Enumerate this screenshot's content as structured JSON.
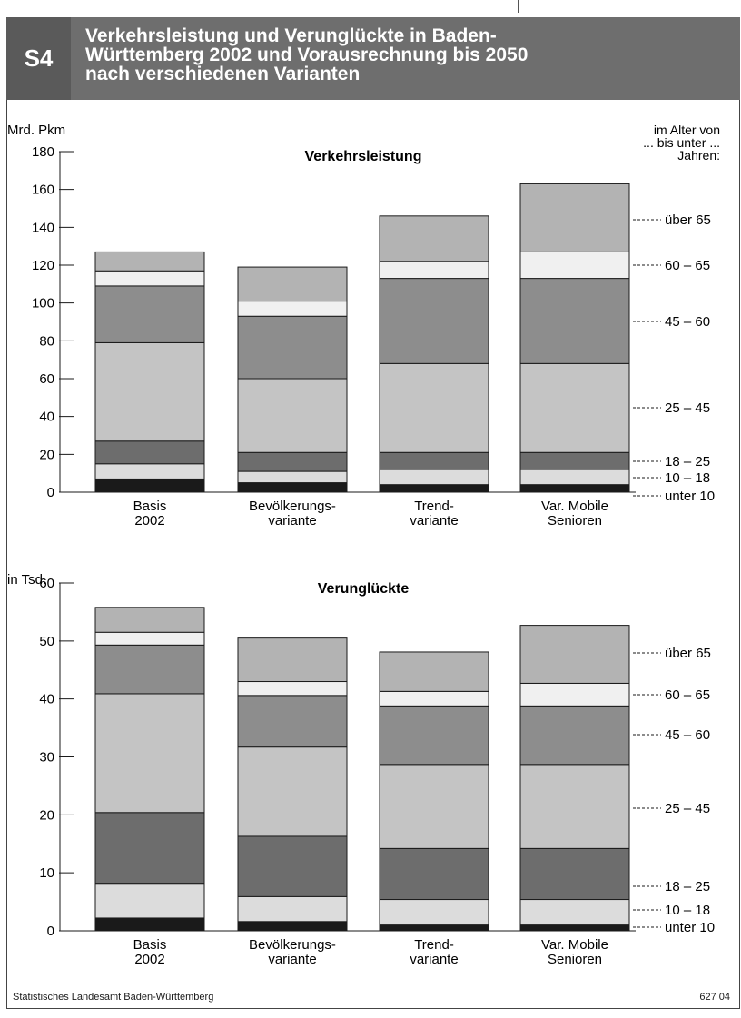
{
  "header": {
    "label": "S4",
    "title": "Verkehrsleistung und Verunglückte in Baden-\nWürttemberg 2002 und Vorausrechnung bis 2050\nnach verschiedenen Varianten"
  },
  "footer": {
    "source": "Statistisches Landesamt Baden-Württemberg",
    "code": "627 04"
  },
  "colors": {
    "unter 10": "#1a1a1a",
    "10 – 18": "#dcdcdc",
    "18 – 25": "#6d6d6d",
    "25 – 45": "#c4c4c4",
    "45 – 60": "#8d8d8d",
    "60 – 65": "#f0f0f0",
    "über 65": "#b3b3b3"
  },
  "chart_data": [
    {
      "type": "bar",
      "stacked": true,
      "title": "Verkehrsleistung",
      "ylabel": "Mrd. Pkm",
      "legend_title": "im Alter von\n... bis unter ...\nJahren:",
      "ylim": [
        0,
        180
      ],
      "yticks": [
        0,
        20,
        40,
        60,
        80,
        100,
        120,
        140,
        160,
        180
      ],
      "categories": [
        "Basis\n2002",
        "Bevölkerungs-\nvariante",
        "Trend-\nvariante",
        "Var. Mobile\nSenioren"
      ],
      "series": [
        {
          "name": "unter 10",
          "values": [
            7,
            5,
            4,
            4
          ]
        },
        {
          "name": "10 – 18",
          "values": [
            8,
            6,
            8,
            8
          ]
        },
        {
          "name": "18 – 25",
          "values": [
            12,
            10,
            9,
            9
          ]
        },
        {
          "name": "25 – 45",
          "values": [
            52,
            39,
            47,
            47
          ]
        },
        {
          "name": "45 – 60",
          "values": [
            30,
            33,
            45,
            45
          ]
        },
        {
          "name": "60 – 65",
          "values": [
            8,
            8,
            9,
            14
          ]
        },
        {
          "name": "über 65",
          "values": [
            10,
            18,
            24,
            36
          ]
        }
      ],
      "legend_labels_order": [
        "über 65",
        "60 – 65",
        "45 – 60",
        "25 – 45",
        "18 – 25",
        "10 – 18",
        "unter 10"
      ]
    },
    {
      "type": "bar",
      "stacked": true,
      "title": "Verunglückte",
      "ylabel": "in Tsd.",
      "ylim": [
        0,
        60
      ],
      "yticks": [
        0,
        10,
        20,
        30,
        40,
        50,
        60
      ],
      "categories": [
        "Basis\n2002",
        "Bevölkerungs-\nvariante",
        "Trend-\nvariante",
        "Var. Mobile\nSenioren"
      ],
      "series": [
        {
          "name": "unter 10",
          "values": [
            2.2,
            1.6,
            1.0,
            1.0
          ]
        },
        {
          "name": "10 – 18",
          "values": [
            6.0,
            4.3,
            4.4,
            4.4
          ]
        },
        {
          "name": "18 – 25",
          "values": [
            12.2,
            10.4,
            8.8,
            8.8
          ]
        },
        {
          "name": "25 – 45",
          "values": [
            20.5,
            15.4,
            14.5,
            14.5
          ]
        },
        {
          "name": "45 – 60",
          "values": [
            8.4,
            8.9,
            10.1,
            10.1
          ]
        },
        {
          "name": "60 – 65",
          "values": [
            2.2,
            2.4,
            2.5,
            3.9
          ]
        },
        {
          "name": "über 65",
          "values": [
            4.3,
            7.5,
            6.8,
            10.0
          ]
        }
      ],
      "legend_labels_order": [
        "über 65",
        "60 – 65",
        "45 – 60",
        "25 – 45",
        "18 – 25",
        "10 – 18",
        "unter 10"
      ]
    }
  ]
}
